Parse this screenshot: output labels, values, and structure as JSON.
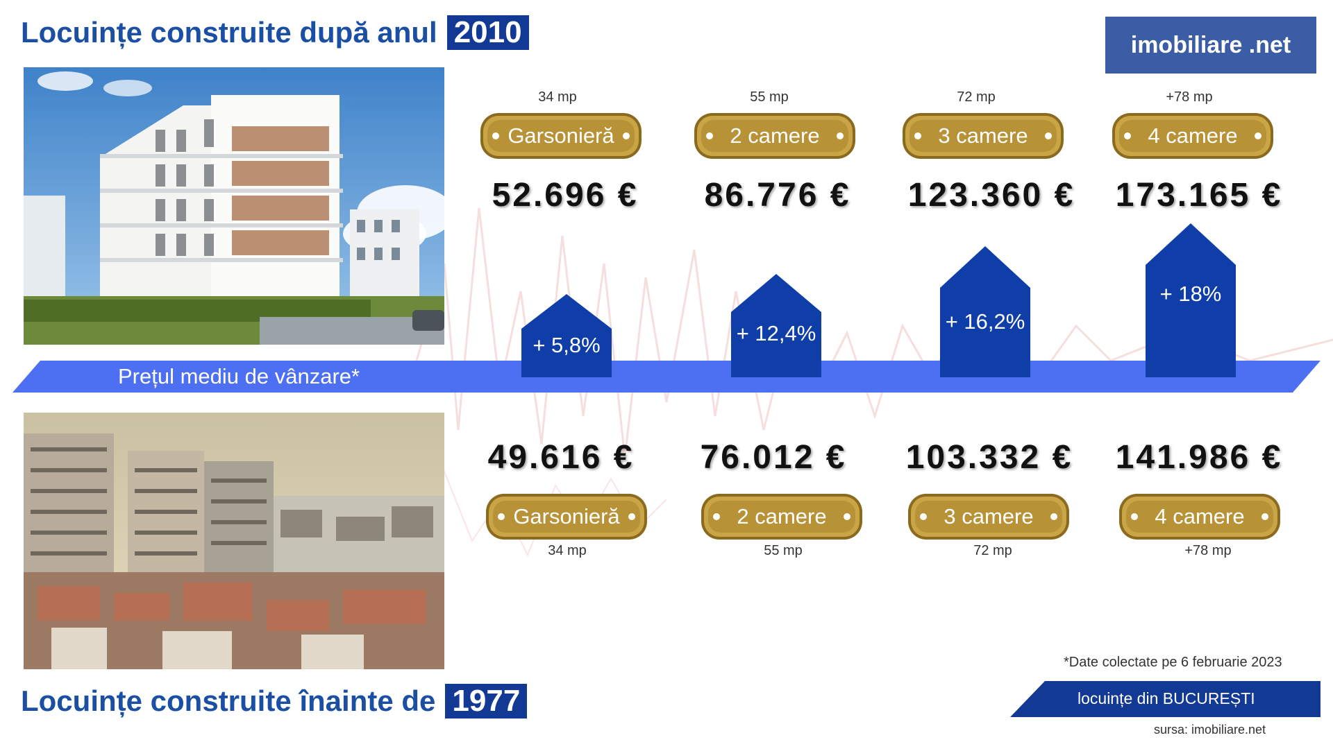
{
  "header": {
    "top_title": "Locuințe construite după anul",
    "top_year": "2010",
    "bottom_title": "Locuințe construite înainte de",
    "bottom_year": "1977",
    "logo": "imobiliare .net"
  },
  "band_label": "Prețul mediu de vânzare*",
  "new_buildings": [
    {
      "type": "Garsonieră",
      "area": "34 mp",
      "price": "52.696 €"
    },
    {
      "type": "2 camere",
      "area": "55 mp",
      "price": "86.776 €"
    },
    {
      "type": "3 camere",
      "area": "72 mp",
      "price": "123.360 €"
    },
    {
      "type": "4 camere",
      "area": "+78 mp",
      "price": "173.165 €"
    }
  ],
  "old_buildings": [
    {
      "type": "Garsonieră",
      "area": "34 mp",
      "price": "49.616 €"
    },
    {
      "type": "2 camere",
      "area": "55 mp",
      "price": "76.012 €"
    },
    {
      "type": "3 camere",
      "area": "72 mp",
      "price": "103.332 €"
    },
    {
      "type": "4 camere",
      "area": "+78 mp",
      "price": "141.986 €"
    }
  ],
  "differences": [
    "+ 5,8%",
    "+ 12,4%",
    "+ 16,2%",
    "+ 18%"
  ],
  "footer": {
    "note": "*Date colectate pe 6 februarie 2023",
    "tag": "locuințe din BUCUREȘTI",
    "source": "sursa: imobiliare.net"
  },
  "colors": {
    "title": "#1a4fa3",
    "year_bg": "#123a94",
    "band": "#4d6ff2",
    "house": "#0f3ea8",
    "gold": "#c9a545",
    "logo_bg": "#3b5da5"
  }
}
